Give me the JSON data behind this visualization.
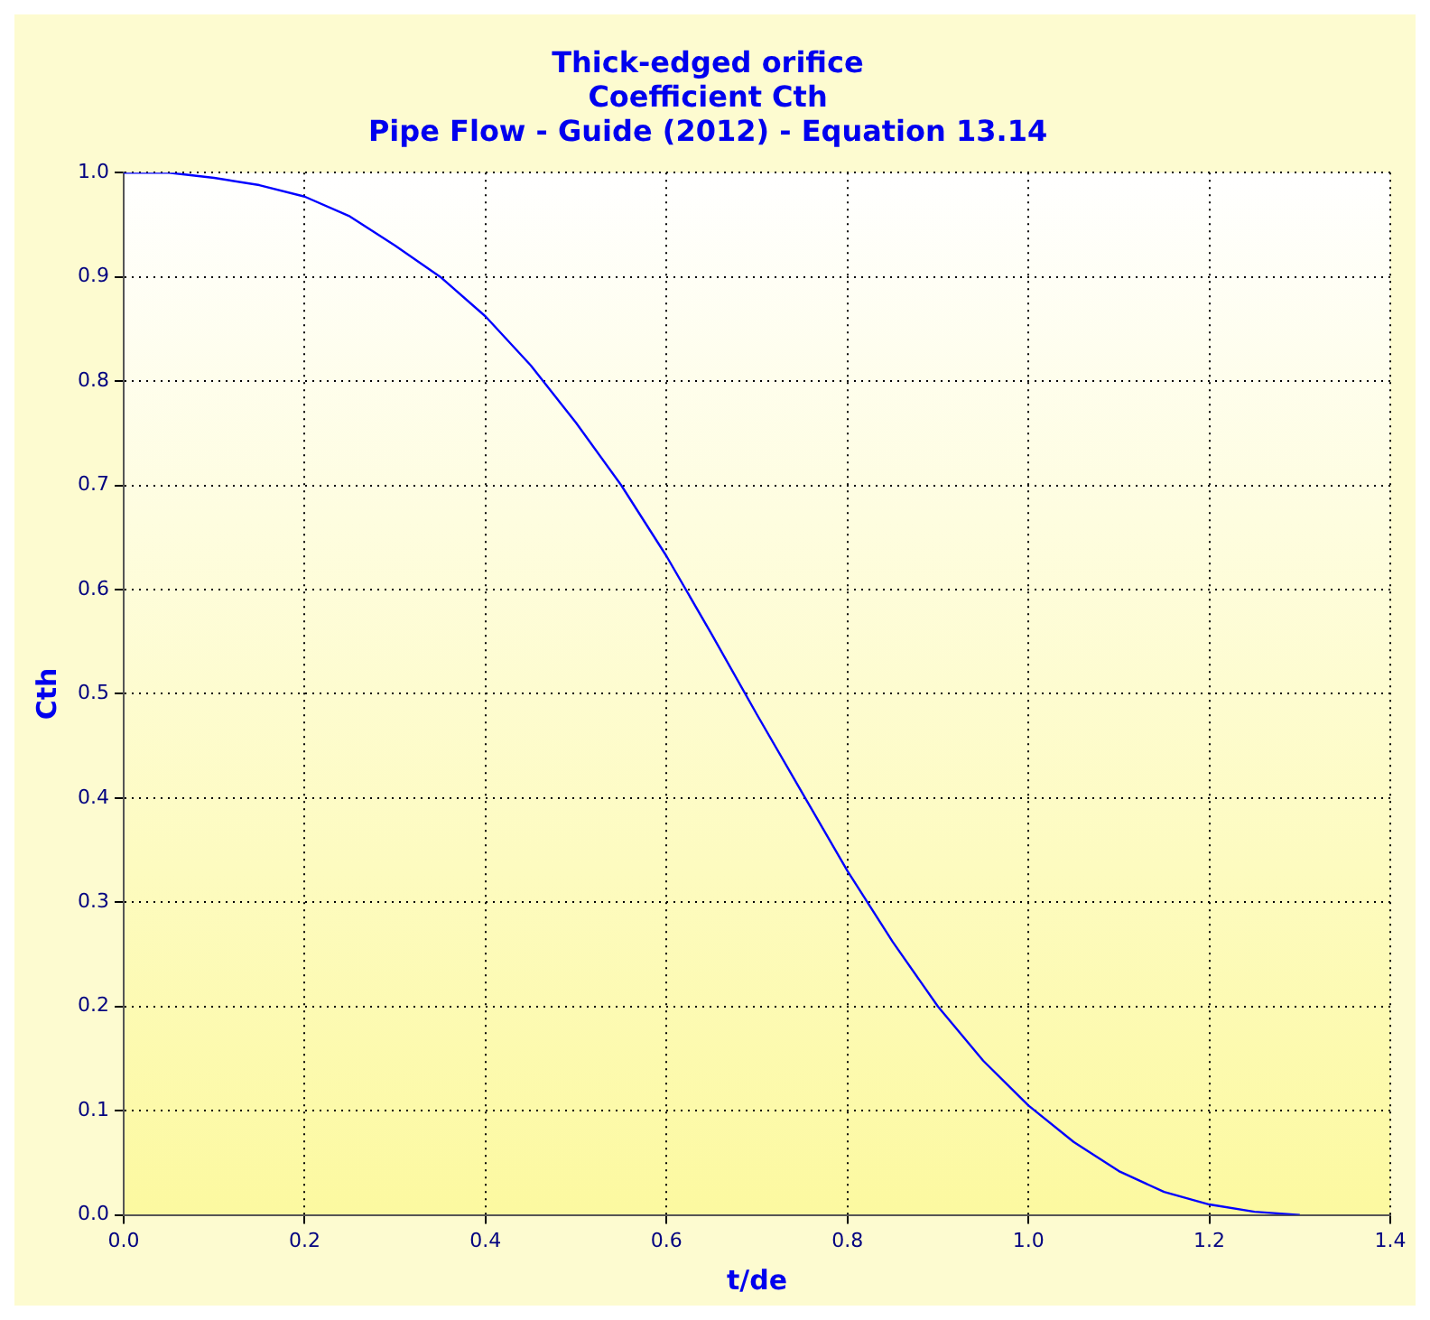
{
  "chart_data": {
    "type": "line",
    "title": "Thick-edged orifice\nCoefficient Cth\nPipe Flow - Guide (2012) - Equation 13.14",
    "xlabel": "t/de",
    "ylabel": "Cth",
    "series": [
      {
        "color": "#0000ff",
        "x": [
          0,
          0.05,
          0.1,
          0.15,
          0.2,
          0.25,
          0.3,
          0.35,
          0.4,
          0.45,
          0.5,
          0.55,
          0.6,
          0.65,
          0.7,
          0.75,
          0.8,
          0.85,
          0.9,
          0.95,
          1.0,
          1.05,
          1.1,
          1.15,
          1.2,
          1.25,
          1.3
        ],
        "values": [
          1.0,
          1.0,
          0.995,
          0.988,
          0.977,
          0.958,
          0.93,
          0.9,
          0.862,
          0.815,
          0.76,
          0.7,
          0.632,
          0.557,
          0.48,
          0.405,
          0.33,
          0.262,
          0.2,
          0.148,
          0.105,
          0.07,
          0.042,
          0.022,
          0.01,
          0.003,
          0.0
        ]
      }
    ],
    "xlim": [
      0,
      1.4
    ],
    "xticks": [
      {
        "value": 0,
        "label": "0.0"
      },
      {
        "value": 0.2,
        "label": "0.2"
      },
      {
        "value": 0.4,
        "label": "0.4"
      },
      {
        "value": 0.6,
        "label": "0.6"
      },
      {
        "value": 0.8,
        "label": "0.8"
      },
      {
        "value": 1,
        "label": "1.0"
      },
      {
        "value": 1.2,
        "label": "1.2"
      },
      {
        "value": 1.4,
        "label": "1.4"
      }
    ],
    "ylim": [
      0,
      1
    ],
    "yticks": [
      {
        "value": 0,
        "label": "0.0"
      },
      {
        "value": 0.1,
        "label": "0.1"
      },
      {
        "value": 0.2,
        "label": "0.2"
      },
      {
        "value": 0.3,
        "label": "0.3"
      },
      {
        "value": 0.4,
        "label": "0.4"
      },
      {
        "value": 0.5,
        "label": "0.5"
      },
      {
        "value": 0.6,
        "label": "0.6"
      },
      {
        "value": 0.7,
        "label": "0.7"
      },
      {
        "value": 0.8,
        "label": "0.8"
      },
      {
        "value": 0.9,
        "label": "0.9"
      },
      {
        "value": 1,
        "label": "1.0"
      }
    ],
    "grid": true,
    "legend": false,
    "marker": "none",
    "line_style": "solid"
  }
}
